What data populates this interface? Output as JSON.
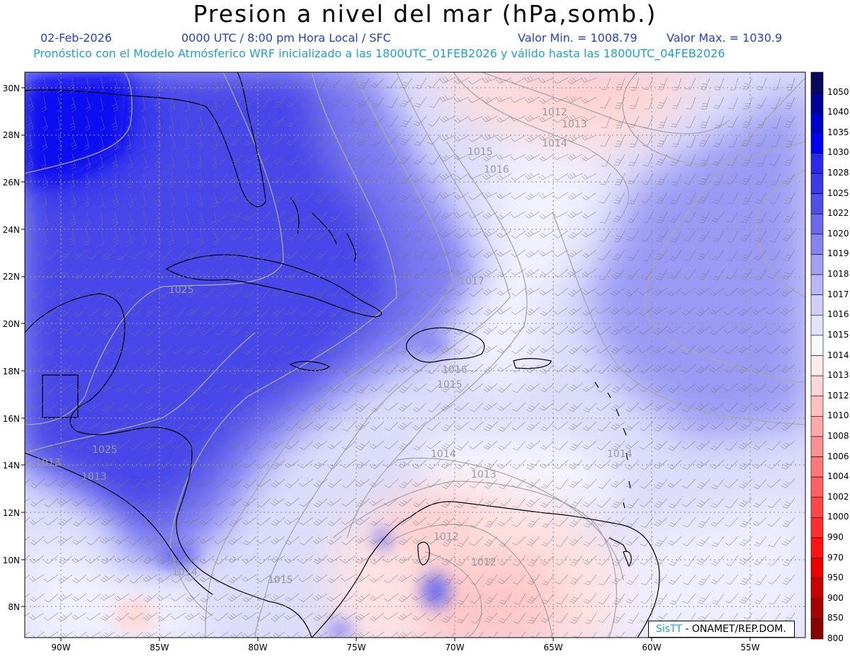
{
  "header": {
    "title": "Presion a nivel del mar (hPa,somb.)",
    "date": "02-Feb-2026",
    "time": "0000 UTC / 8:00 pm Hora Local / SFC",
    "min": "Valor Min. = 1008.79",
    "max": "Valor Max. = 1030.9",
    "forecast": "Pronóstico con el Modelo Atmósferico WRF inicializado a las 1800UTC_01FEB2026 y válido hasta las  1800UTC_04FEB2026"
  },
  "axes": {
    "lat_labels": [
      "30N",
      "28N",
      "26N",
      "24N",
      "22N",
      "20N",
      "18N",
      "16N",
      "14N",
      "12N",
      "10N",
      "8N"
    ],
    "lon_labels": [
      "90W",
      "85W",
      "80W",
      "75W",
      "70W",
      "65W",
      "60W",
      "55W"
    ]
  },
  "colorbar": {
    "levels": [
      "1050",
      "1040",
      "1035",
      "1030",
      "1028",
      "1025",
      "1022",
      "1020",
      "1019",
      "1018",
      "1017",
      "1016",
      "1015",
      "1014",
      "1013",
      "1012",
      "1010",
      "1008",
      "1006",
      "1004",
      "1002",
      "1000",
      "990",
      "970",
      "950",
      "900",
      "850",
      "800"
    ],
    "colors": [
      "#0a0a5a",
      "#00009a",
      "#0000cc",
      "#0000f5",
      "#2a2aee",
      "#3a3ae6",
      "#5050e6",
      "#6a6aee",
      "#8585f2",
      "#a0a0f5",
      "#b8b8f8",
      "#cfcffb",
      "#e3e3fd",
      "#f8f8ff",
      "#ffeaea",
      "#ffd6d6",
      "#ffc0c0",
      "#ffa8a8",
      "#ff9090",
      "#ff7878",
      "#ff6060",
      "#ff4646",
      "#ff2e2e",
      "#ff1414",
      "#ee0000",
      "#cc0000",
      "#a80000",
      "#880000"
    ]
  },
  "contour_labels": [
    "1012",
    "1013",
    "1014",
    "1015",
    "1016",
    "1017",
    "1025",
    "1025",
    "1013",
    "1016",
    "1015",
    "1014",
    "1013",
    "1012",
    "1012",
    "1015",
    "1014",
    "1014",
    "1013"
  ],
  "credit": {
    "logo": "SisTT",
    "text": "- ONAMET/REP.DOM."
  }
}
